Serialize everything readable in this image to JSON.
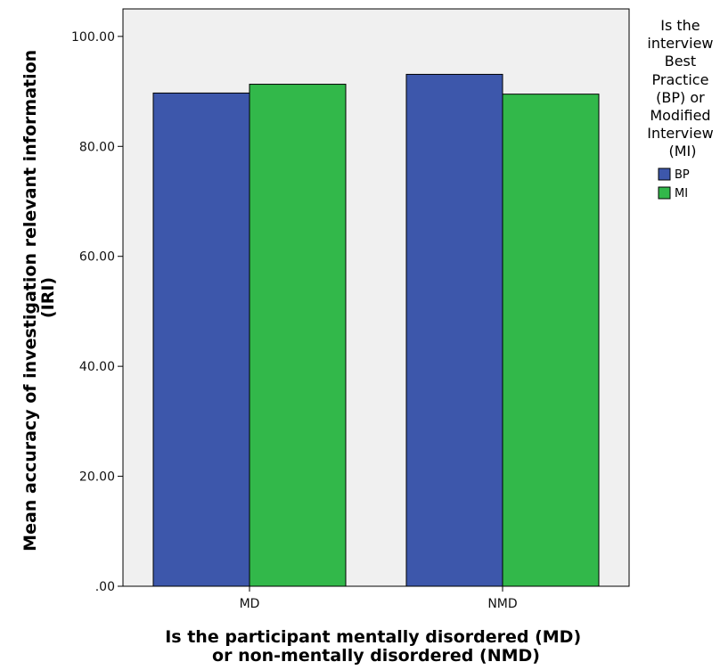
{
  "chart_data": {
    "type": "bar",
    "categories": [
      "MD",
      "NMD"
    ],
    "series": [
      {
        "name": "BP",
        "values": [
          89.7,
          93.1
        ],
        "color": "#3d57ab"
      },
      {
        "name": "MI",
        "values": [
          91.3,
          89.5
        ],
        "color": "#32b84a"
      }
    ],
    "ylim": [
      0,
      105
    ],
    "yticks": [
      0,
      20,
      40,
      60,
      80,
      100
    ],
    "ytick_labels": [
      ".00",
      "20.00",
      "40.00",
      "60.00",
      "80.00",
      "100.00"
    ],
    "xlabel_lines": [
      "Is the participant mentally disordered (MD)",
      "or non-mentally disordered (NMD)"
    ],
    "ylabel_lines": [
      "Mean accuracy of investigation relevant information",
      "(IRI)"
    ],
    "legend_title_lines": [
      "Is the",
      "interview",
      "Best",
      "Practice",
      "(BP) or",
      "Modified",
      "Interview",
      "(MI)"
    ],
    "legend_position": "right",
    "plot_background": "#f0f0f0",
    "grid": false
  }
}
